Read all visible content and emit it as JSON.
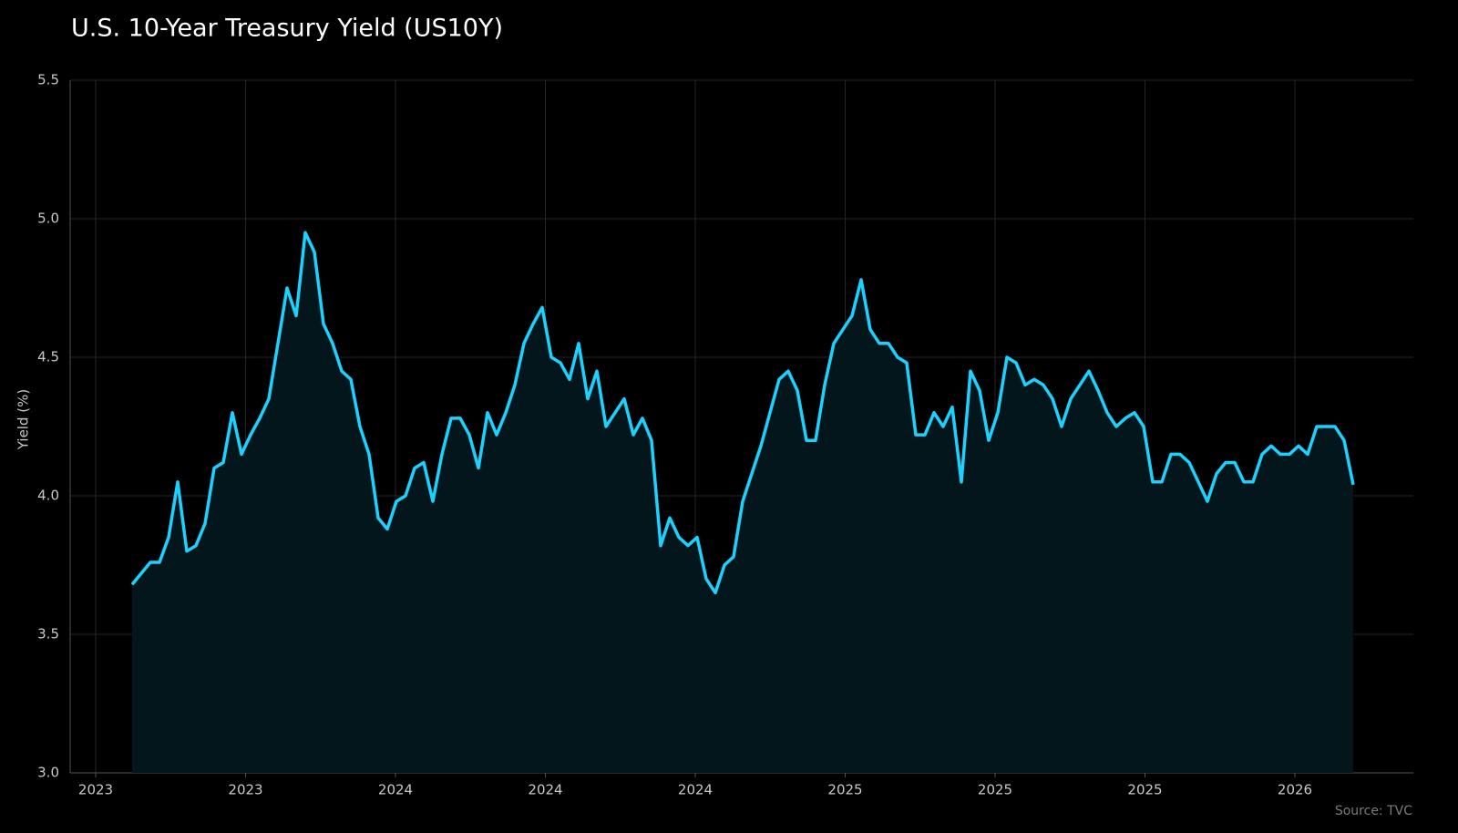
{
  "chart_data": {
    "type": "area",
    "title": "U.S. 10-Year Treasury Yield (US10Y)",
    "y_label": "Yield (%)",
    "source": "Source: TVC",
    "color": "#19d2ff",
    "fill": "#03161c",
    "grid": true,
    "ylim": [
      3.0,
      5.5
    ],
    "yticks": [
      {
        "value": 3.0,
        "label": "3.0"
      },
      3.5,
      {
        "value": 4.0,
        "label": "4.0"
      },
      4.5,
      {
        "value": 5.0,
        "label": "5.0"
      },
      5.5
    ],
    "xlim": [
      -6.8,
      140.6
    ],
    "xticks": [
      {
        "value": -4,
        "label": "2023"
      },
      {
        "value": 12.45,
        "label": "2023"
      },
      {
        "value": 28.9,
        "label": "2024"
      },
      {
        "value": 45.35,
        "label": "2024"
      },
      {
        "value": 61.8,
        "label": "2024"
      },
      {
        "value": 78.25,
        "label": "2025"
      },
      {
        "value": 94.7,
        "label": "2025"
      },
      {
        "value": 111.15,
        "label": "2025"
      },
      {
        "value": 127.6,
        "label": "2026"
      }
    ],
    "values": [
      3.68,
      3.72,
      3.76,
      3.76,
      3.85,
      4.05,
      3.8,
      3.82,
      3.9,
      4.1,
      4.12,
      4.3,
      4.15,
      4.22,
      4.28,
      4.35,
      4.55,
      4.75,
      4.65,
      4.95,
      4.88,
      4.62,
      4.55,
      4.45,
      4.42,
      4.25,
      4.15,
      3.92,
      3.88,
      3.98,
      4.0,
      4.1,
      4.12,
      3.98,
      4.15,
      4.28,
      4.28,
      4.22,
      4.1,
      4.3,
      4.22,
      4.3,
      4.4,
      4.55,
      4.62,
      4.68,
      4.5,
      4.48,
      4.42,
      4.55,
      4.35,
      4.45,
      4.25,
      4.3,
      4.35,
      4.22,
      4.28,
      4.2,
      3.82,
      3.92,
      3.85,
      3.82,
      3.85,
      3.7,
      3.65,
      3.75,
      3.78,
      3.98,
      4.08,
      4.18,
      4.3,
      4.42,
      4.45,
      4.38,
      4.2,
      4.2,
      4.4,
      4.55,
      4.6,
      4.65,
      4.78,
      4.6,
      4.55,
      4.55,
      4.5,
      4.48,
      4.22,
      4.22,
      4.3,
      4.25,
      4.32,
      4.05,
      4.45,
      4.38,
      4.2,
      4.3,
      4.5,
      4.48,
      4.4,
      4.42,
      4.4,
      4.35,
      4.25,
      4.35,
      4.4,
      4.45,
      4.38,
      4.3,
      4.25,
      4.28,
      4.3,
      4.25,
      4.05,
      4.05,
      4.15,
      4.15,
      4.12,
      4.05,
      3.98,
      4.08,
      4.12,
      4.12,
      4.05,
      4.05,
      4.15,
      4.18,
      4.15,
      4.15,
      4.18,
      4.15,
      4.25,
      4.25,
      4.25,
      4.2,
      4.04
    ]
  }
}
